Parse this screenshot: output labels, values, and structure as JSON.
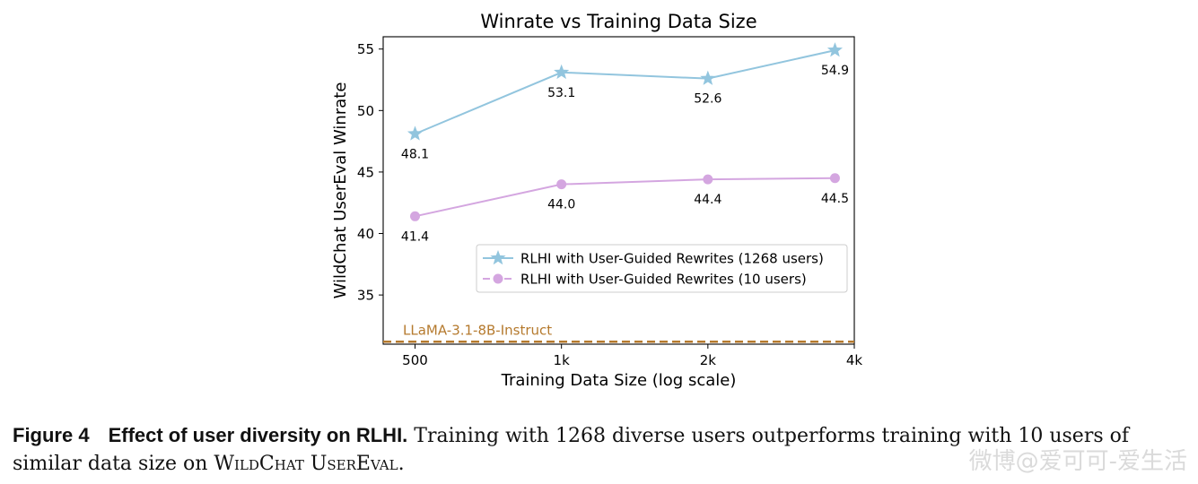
{
  "chart_data": {
    "type": "line",
    "title": "Winrate vs Training Data Size",
    "xlabel": "Training Data Size (log scale)",
    "ylabel": "WildChat UserEval Winrate",
    "xscale": "log",
    "xlim": [
      430,
      4000
    ],
    "ylim": [
      31,
      56
    ],
    "xticks": [
      500,
      1000,
      2000,
      4000
    ],
    "xtick_labels": [
      "500",
      "1k",
      "2k",
      "4k"
    ],
    "yticks": [
      35,
      40,
      45,
      50,
      55
    ],
    "ytick_labels": [
      "35",
      "40",
      "45",
      "50",
      "55"
    ],
    "grid": false,
    "legend_position": "lower-right",
    "series": [
      {
        "name": "RLHI with User-Guided Rewrites (1268 users)",
        "x": [
          500,
          1000,
          2000,
          3650
        ],
        "y": [
          48.1,
          53.1,
          52.6,
          54.9
        ],
        "labels": [
          "48.1",
          "53.1",
          "52.6",
          "54.9"
        ],
        "color": "#92c5de",
        "marker": "star",
        "linestyle": "solid"
      },
      {
        "name": "RLHI with User-Guided Rewrites (10 users)",
        "x": [
          500,
          1000,
          2000,
          3650
        ],
        "y": [
          41.4,
          44.0,
          44.4,
          44.5
        ],
        "labels": [
          "41.4",
          "44.0",
          "44.4",
          "44.5"
        ],
        "color": "#d4a6e0",
        "marker": "circle",
        "linestyle": "solid"
      }
    ],
    "baseline": {
      "name": "LLaMA-3.1-8B-Instruct",
      "y": 31.2,
      "color": "#b57a2e",
      "linestyle": "dashed"
    }
  },
  "caption": {
    "label": "Figure 4",
    "bold": "Effect of user diversity on RLHI.",
    "text_before": "Training with 1268 diverse users outperforms training with 10 users of similar data size on",
    "smallcaps": "WildChat UserEval",
    "text_after": "."
  },
  "watermark": "微博@爱可可-爱生活"
}
